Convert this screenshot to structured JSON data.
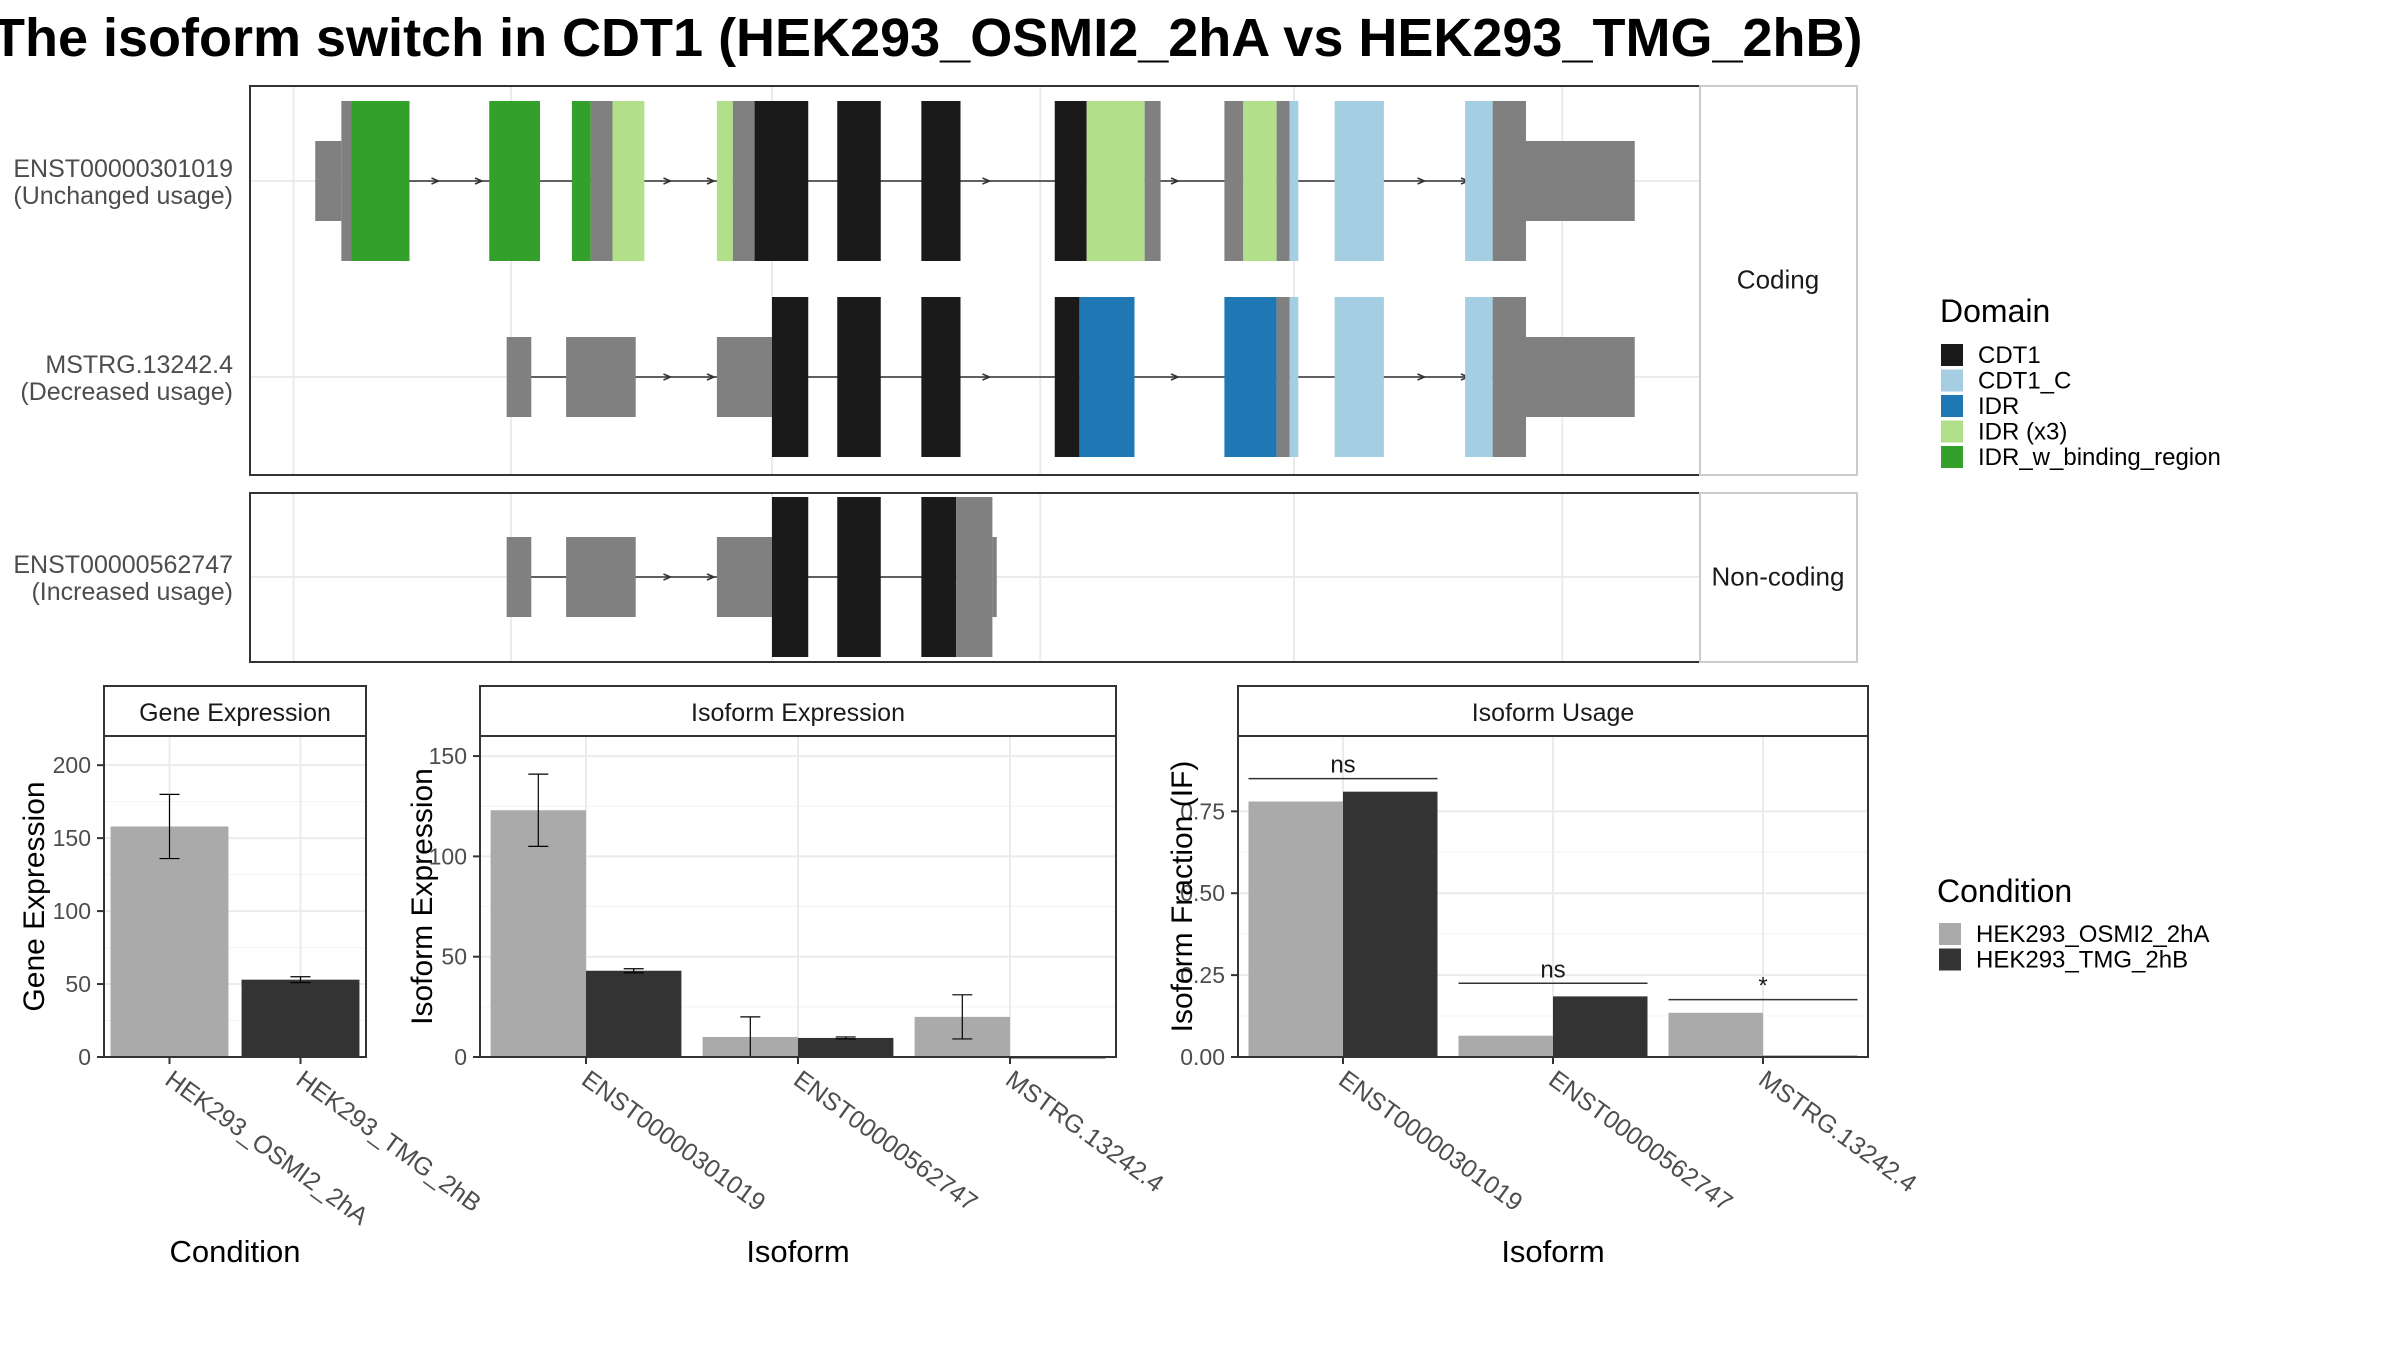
{
  "title": "The isoform switch in CDT1 (HEK293_OSMI2_2hA vs HEK293_TMG_2hB)",
  "colors": {
    "cdt1": "#1a1a1a",
    "cdt1_c": "#a6cee3",
    "idr": "#1f78b4",
    "idr_x3": "#b2df8a",
    "idr_w_binding_region": "#33a02c",
    "noncoding_exon": "#808080",
    "cond_a": "#aaaaaa",
    "cond_b": "#333333"
  },
  "structure": {
    "facets": [
      "Coding",
      "Non-coding"
    ],
    "transcripts": [
      {
        "id": "ENST00000301019",
        "usage": "(Unchanged usage)",
        "facet": "Coding",
        "intron": [
          0.06,
          0.9
        ],
        "arrows": [
          0.13,
          0.16,
          0.29,
          0.32,
          0.51,
          0.64,
          0.81,
          0.84
        ],
        "blocks": [
          {
            "s": 0.045,
            "e": 0.063,
            "h": "utr",
            "c": "noncoding_exon"
          },
          {
            "s": 0.063,
            "e": 0.07,
            "h": "cds",
            "c": "noncoding_exon"
          },
          {
            "s": 0.07,
            "e": 0.11,
            "h": "cds",
            "c": "idr_w_binding_region"
          },
          {
            "s": 0.165,
            "e": 0.2,
            "h": "cds",
            "c": "idr_w_binding_region"
          },
          {
            "s": 0.222,
            "e": 0.235,
            "h": "cds",
            "c": "idr_w_binding_region"
          },
          {
            "s": 0.235,
            "e": 0.25,
            "h": "cds",
            "c": "noncoding_exon"
          },
          {
            "s": 0.25,
            "e": 0.272,
            "h": "cds",
            "c": "idr_x3"
          },
          {
            "s": 0.322,
            "e": 0.333,
            "h": "cds",
            "c": "idr_x3"
          },
          {
            "s": 0.333,
            "e": 0.348,
            "h": "cds",
            "c": "noncoding_exon"
          },
          {
            "s": 0.348,
            "e": 0.385,
            "h": "cds",
            "c": "cdt1"
          },
          {
            "s": 0.405,
            "e": 0.435,
            "h": "cds",
            "c": "cdt1"
          },
          {
            "s": 0.463,
            "e": 0.49,
            "h": "cds",
            "c": "cdt1"
          },
          {
            "s": 0.555,
            "e": 0.577,
            "h": "cds",
            "c": "cdt1"
          },
          {
            "s": 0.577,
            "e": 0.617,
            "h": "cds",
            "c": "idr_x3"
          },
          {
            "s": 0.617,
            "e": 0.628,
            "h": "cds",
            "c": "noncoding_exon"
          },
          {
            "s": 0.672,
            "e": 0.685,
            "h": "cds",
            "c": "noncoding_exon"
          },
          {
            "s": 0.685,
            "e": 0.708,
            "h": "cds",
            "c": "idr_x3"
          },
          {
            "s": 0.708,
            "e": 0.717,
            "h": "cds",
            "c": "noncoding_exon"
          },
          {
            "s": 0.717,
            "e": 0.723,
            "h": "cds",
            "c": "cdt1_c"
          },
          {
            "s": 0.748,
            "e": 0.782,
            "h": "cds",
            "c": "cdt1_c"
          },
          {
            "s": 0.838,
            "e": 0.857,
            "h": "cds",
            "c": "cdt1_c"
          },
          {
            "s": 0.857,
            "e": 0.88,
            "h": "cds",
            "c": "noncoding_exon"
          },
          {
            "s": 0.88,
            "e": 0.955,
            "h": "utr",
            "c": "noncoding_exon"
          }
        ]
      },
      {
        "id": "MSTRG.13242.4",
        "usage": "(Decreased usage)",
        "facet": "Coding",
        "intron": [
          0.18,
          0.9
        ],
        "arrows": [
          0.29,
          0.32,
          0.51,
          0.64,
          0.81,
          0.84
        ],
        "blocks": [
          {
            "s": 0.177,
            "e": 0.194,
            "h": "utr",
            "c": "noncoding_exon"
          },
          {
            "s": 0.218,
            "e": 0.266,
            "h": "utr",
            "c": "noncoding_exon"
          },
          {
            "s": 0.322,
            "e": 0.36,
            "h": "utr",
            "c": "noncoding_exon"
          },
          {
            "s": 0.36,
            "e": 0.385,
            "h": "cds",
            "c": "cdt1"
          },
          {
            "s": 0.405,
            "e": 0.435,
            "h": "cds",
            "c": "cdt1"
          },
          {
            "s": 0.463,
            "e": 0.49,
            "h": "cds",
            "c": "cdt1"
          },
          {
            "s": 0.555,
            "e": 0.572,
            "h": "cds",
            "c": "cdt1"
          },
          {
            "s": 0.572,
            "e": 0.61,
            "h": "cds",
            "c": "idr"
          },
          {
            "s": 0.672,
            "e": 0.708,
            "h": "cds",
            "c": "idr"
          },
          {
            "s": 0.708,
            "e": 0.717,
            "h": "cds",
            "c": "noncoding_exon"
          },
          {
            "s": 0.717,
            "e": 0.723,
            "h": "cds",
            "c": "cdt1_c"
          },
          {
            "s": 0.748,
            "e": 0.782,
            "h": "cds",
            "c": "cdt1_c"
          },
          {
            "s": 0.838,
            "e": 0.857,
            "h": "cds",
            "c": "cdt1_c"
          },
          {
            "s": 0.857,
            "e": 0.88,
            "h": "cds",
            "c": "noncoding_exon"
          },
          {
            "s": 0.88,
            "e": 0.955,
            "h": "utr",
            "c": "noncoding_exon"
          }
        ]
      },
      {
        "id": "ENST00000562747",
        "usage": "(Increased usage)",
        "facet": "Non-coding",
        "intron": [
          0.18,
          0.51
        ],
        "arrows": [
          0.29,
          0.32
        ],
        "blocks": [
          {
            "s": 0.177,
            "e": 0.194,
            "h": "utr",
            "c": "noncoding_exon"
          },
          {
            "s": 0.218,
            "e": 0.266,
            "h": "utr",
            "c": "noncoding_exon"
          },
          {
            "s": 0.322,
            "e": 0.36,
            "h": "utr",
            "c": "noncoding_exon"
          },
          {
            "s": 0.36,
            "e": 0.385,
            "h": "cds",
            "c": "cdt1"
          },
          {
            "s": 0.405,
            "e": 0.435,
            "h": "cds",
            "c": "cdt1"
          },
          {
            "s": 0.463,
            "e": 0.487,
            "h": "cds",
            "c": "cdt1"
          },
          {
            "s": 0.487,
            "e": 0.512,
            "h": "cds",
            "c": "noncoding_exon"
          },
          {
            "s": 0.512,
            "e": 0.515,
            "h": "utr",
            "c": "noncoding_exon"
          }
        ]
      }
    ]
  },
  "legend_domain": {
    "title": "Domain",
    "items": [
      {
        "label": "CDT1",
        "c": "cdt1"
      },
      {
        "label": "CDT1_C",
        "c": "cdt1_c"
      },
      {
        "label": "IDR",
        "c": "idr"
      },
      {
        "label": "IDR (x3)",
        "c": "idr_x3"
      },
      {
        "label": "IDR_w_binding_region",
        "c": "idr_w_binding_region"
      }
    ]
  },
  "legend_condition": {
    "title": "Condition",
    "items": [
      {
        "label": "HEK293_OSMI2_2hA",
        "c": "cond_a"
      },
      {
        "label": "HEK293_TMG_2hB",
        "c": "cond_b"
      }
    ]
  },
  "chart_data": [
    {
      "type": "bar",
      "title": "Gene Expression",
      "xlabel": "Condition",
      "ylabel": "Gene Expression",
      "ylim": [
        0,
        220
      ],
      "yticks": [
        0,
        50,
        100,
        150,
        200
      ],
      "categories": [
        "HEK293_OSMI2_2hA",
        "HEK293_TMG_2hB"
      ],
      "series": [
        {
          "name": "HEK293_OSMI2_2hA",
          "values": [
            158,
            null
          ],
          "err_low": [
            136,
            null
          ],
          "err_high": [
            180,
            null
          ]
        },
        {
          "name": "HEK293_TMG_2hB",
          "values": [
            null,
            53
          ],
          "err_low": [
            null,
            51
          ],
          "err_high": [
            null,
            55
          ]
        }
      ],
      "grid": true
    },
    {
      "type": "bar",
      "title": "Isoform Expression",
      "xlabel": "Isoform",
      "ylabel": "Isoform Expression",
      "ylim": [
        0,
        160
      ],
      "yticks": [
        0,
        50,
        100,
        150
      ],
      "categories": [
        "ENST00000301019",
        "ENST00000562747",
        "MSTRG.13242.4"
      ],
      "series": [
        {
          "name": "HEK293_OSMI2_2hA",
          "values": [
            123,
            10,
            20
          ],
          "err_low": [
            105,
            0,
            9
          ],
          "err_high": [
            141,
            20,
            31
          ]
        },
        {
          "name": "HEK293_TMG_2hB",
          "values": [
            43,
            9.5,
            0
          ],
          "err_low": [
            42,
            9,
            0
          ],
          "err_high": [
            44,
            10,
            0
          ]
        }
      ],
      "grid": true
    },
    {
      "type": "bar",
      "title": "Isoform Usage",
      "xlabel": "Isoform",
      "ylabel": "Isoform Fraction (IF)",
      "ylim": [
        0,
        0.98
      ],
      "yticks": [
        "0.00",
        "0.25",
        "0.50",
        "0.75"
      ],
      "categories": [
        "ENST00000301019",
        "ENST00000562747",
        "MSTRG.13242.4"
      ],
      "series": [
        {
          "name": "HEK293_OSMI2_2hA",
          "values": [
            0.78,
            0.065,
            0.135
          ]
        },
        {
          "name": "HEK293_TMG_2hB",
          "values": [
            0.81,
            0.185,
            0.004
          ]
        }
      ],
      "annotations": [
        {
          "category": "ENST00000301019",
          "label": "ns",
          "y": 0.85
        },
        {
          "category": "ENST00000562747",
          "label": "ns",
          "y": 0.225
        },
        {
          "category": "MSTRG.13242.4",
          "label": "*",
          "y": 0.175
        }
      ],
      "grid": true
    }
  ]
}
